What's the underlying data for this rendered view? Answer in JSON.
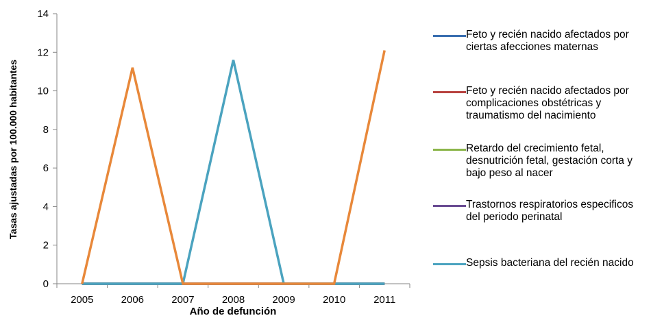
{
  "chart_data": {
    "type": "line",
    "title": "",
    "xlabel": "Año de defunción",
    "ylabel": "Tasas ajustadas por 100.000 habitantes",
    "categories": [
      "2005",
      "2006",
      "2007",
      "2008",
      "2009",
      "2010",
      "2011"
    ],
    "ylim": [
      0,
      14
    ],
    "yticks": [
      0,
      2,
      4,
      6,
      8,
      10,
      12,
      14
    ],
    "grid": false,
    "legend_position": "right",
    "series": [
      {
        "name": "Feto y recién nacido afectados por ciertas afecciones maternas",
        "color": "#3A6FB0",
        "values": [
          0,
          0,
          0,
          0,
          0,
          0,
          0
        ]
      },
      {
        "name": "Feto y recién nacido afectados por complicaciones obstétricas y traumatismo del nacimiento",
        "color": "#B7413E",
        "values": [
          0,
          0,
          0,
          0,
          0,
          0,
          0
        ]
      },
      {
        "name": "Retardo del crecimiento fetal, desnutrición fetal, gestación corta y bajo peso al nacer",
        "color": "#8BB54A",
        "values": [
          0,
          0,
          0,
          0,
          0,
          0,
          0
        ]
      },
      {
        "name": "Trastornos respiratorios especificos del periodo perinatal",
        "color": "#6A4C93",
        "values": [
          0,
          0,
          0,
          0,
          0,
          0,
          0
        ]
      },
      {
        "name": "Sepsis bacteriana del recién nacido",
        "color": "#4BA3BF",
        "values": [
          0,
          0,
          0,
          11.6,
          0,
          0,
          0
        ]
      },
      {
        "name": "",
        "color": "#E8883A",
        "values": [
          0,
          11.2,
          0,
          0,
          0,
          0,
          12.1
        ]
      }
    ]
  }
}
